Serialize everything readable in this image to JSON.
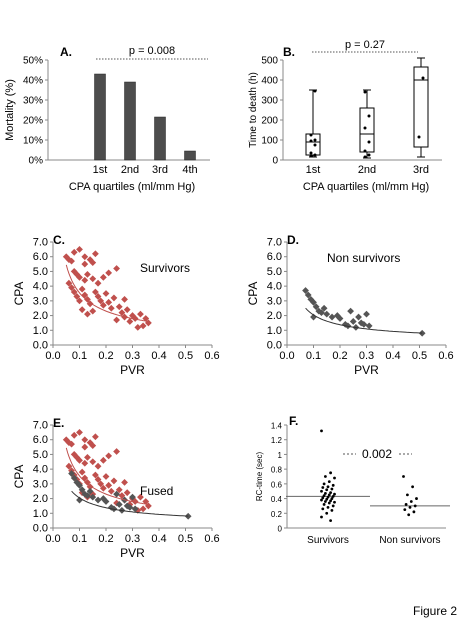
{
  "figure_caption": "Figure 2",
  "colors": {
    "survivor": "#c0504d",
    "nonsurvivor": "#555555",
    "bar": "#4d4d4d",
    "axis": "#888888"
  },
  "chart_data": [
    {
      "id": "A",
      "panel": "A.",
      "type": "bar",
      "categories": [
        "1st",
        "2nd",
        "3rd",
        "4th"
      ],
      "values": [
        43,
        39,
        21.5,
        4.5
      ],
      "xlabel": "CPA quartiles (ml/mm Hg)",
      "ylabel": "Mortality (%)",
      "ylim": [
        0,
        50
      ],
      "yticks": [
        "0%",
        "10%",
        "20%",
        "30%",
        "40%",
        "50%"
      ],
      "annotation": "p = 0.008"
    },
    {
      "id": "B",
      "panel": "B.",
      "type": "box",
      "categories": [
        "1st",
        "2nd",
        "3rd"
      ],
      "boxes": [
        {
          "min": 15,
          "q1": 25,
          "median": 90,
          "q3": 130,
          "max": 350,
          "points": [
            20,
            25,
            35,
            75,
            95,
            100,
            125,
            345
          ]
        },
        {
          "min": 10,
          "q1": 40,
          "median": 130,
          "q3": 260,
          "max": 350,
          "points": [
            15,
            25,
            45,
            90,
            160,
            220,
            340
          ]
        },
        {
          "min": 15,
          "q1": 65,
          "median": 400,
          "q3": 465,
          "max": 510,
          "points": [
            115,
            410
          ]
        }
      ],
      "xlabel": "CPA quartiles (ml/mm Hg)",
      "ylabel": "Time to death (h)",
      "ylim": [
        0,
        500
      ],
      "yticks": [
        "0",
        "100",
        "200",
        "300",
        "400",
        "500"
      ],
      "annotation": "p = 0.27"
    },
    {
      "id": "C",
      "panel": "C.",
      "type": "scatter",
      "series": [
        {
          "name": "Survivors",
          "color": "#c0504d",
          "points": [
            [
              0.05,
              6.0
            ],
            [
              0.06,
              5.8
            ],
            [
              0.07,
              5.7
            ],
            [
              0.08,
              6.3
            ],
            [
              0.1,
              6.5
            ],
            [
              0.12,
              6.0
            ],
            [
              0.12,
              5.5
            ],
            [
              0.14,
              5.8
            ],
            [
              0.15,
              5.6
            ],
            [
              0.16,
              6.2
            ],
            [
              0.08,
              5.0
            ],
            [
              0.09,
              4.8
            ],
            [
              0.1,
              4.6
            ],
            [
              0.12,
              4.4
            ],
            [
              0.13,
              4.8
            ],
            [
              0.15,
              4.5
            ],
            [
              0.17,
              4.2
            ],
            [
              0.19,
              4.6
            ],
            [
              0.21,
              4.9
            ],
            [
              0.24,
              5.2
            ],
            [
              0.06,
              4.2
            ],
            [
              0.07,
              3.9
            ],
            [
              0.08,
              3.6
            ],
            [
              0.09,
              3.3
            ],
            [
              0.1,
              3.0
            ],
            [
              0.11,
              3.8
            ],
            [
              0.12,
              3.4
            ],
            [
              0.13,
              3.1
            ],
            [
              0.14,
              2.8
            ],
            [
              0.16,
              3.6
            ],
            [
              0.17,
              3.3
            ],
            [
              0.18,
              3.0
            ],
            [
              0.19,
              2.7
            ],
            [
              0.2,
              3.5
            ],
            [
              0.21,
              2.9
            ],
            [
              0.22,
              2.5
            ],
            [
              0.23,
              3.2
            ],
            [
              0.25,
              2.6
            ],
            [
              0.26,
              2.2
            ],
            [
              0.27,
              3.1
            ],
            [
              0.28,
              2.4
            ],
            [
              0.3,
              2.0
            ],
            [
              0.29,
              1.6
            ],
            [
              0.31,
              1.8
            ],
            [
              0.33,
              2.1
            ],
            [
              0.35,
              1.8
            ],
            [
              0.36,
              1.5
            ],
            [
              0.34,
              1.3
            ],
            [
              0.32,
              1.2
            ],
            [
              0.11,
              2.4
            ],
            [
              0.13,
              2.1
            ],
            [
              0.15,
              2.3
            ],
            [
              0.24,
              1.7
            ],
            [
              0.27,
              1.9
            ]
          ]
        }
      ],
      "trend_label": "Survivors",
      "xlabel": "PVR",
      "ylabel": "CPA",
      "xlim": [
        0,
        0.6
      ],
      "ylim": [
        0,
        7
      ],
      "xticks": [
        "0.0",
        "0.1",
        "0.2",
        "0.3",
        "0.4",
        "0.5",
        "0.6"
      ],
      "yticks": [
        "0.0",
        "1.0",
        "2.0",
        "3.0",
        "4.0",
        "5.0",
        "6.0",
        "7.0"
      ]
    },
    {
      "id": "D",
      "panel": "D.",
      "type": "scatter",
      "series": [
        {
          "name": "Non survivors",
          "color": "#555555",
          "points": [
            [
              0.07,
              3.7
            ],
            [
              0.08,
              3.4
            ],
            [
              0.09,
              3.1
            ],
            [
              0.1,
              2.9
            ],
            [
              0.11,
              2.6
            ],
            [
              0.12,
              2.3
            ],
            [
              0.13,
              2.2
            ],
            [
              0.14,
              2.5
            ],
            [
              0.15,
              2.1
            ],
            [
              0.17,
              1.9
            ],
            [
              0.19,
              2.0
            ],
            [
              0.2,
              1.8
            ],
            [
              0.22,
              1.4
            ],
            [
              0.23,
              1.3
            ],
            [
              0.24,
              2.3
            ],
            [
              0.25,
              1.6
            ],
            [
              0.26,
              1.2
            ],
            [
              0.27,
              1.9
            ],
            [
              0.28,
              1.5
            ],
            [
              0.29,
              1.4
            ],
            [
              0.3,
              2.1
            ],
            [
              0.31,
              1.3
            ],
            [
              0.1,
              1.9
            ],
            [
              0.51,
              0.8
            ]
          ]
        }
      ],
      "trend_label": "Non survivors",
      "xlabel": "PVR",
      "ylabel": "CPA",
      "xlim": [
        0,
        0.6
      ],
      "ylim": [
        0,
        7
      ],
      "xticks": [
        "0.0",
        "0.1",
        "0.2",
        "0.3",
        "0.4",
        "0.5",
        "0.6"
      ],
      "yticks": [
        "0.0",
        "1.0",
        "2.0",
        "3.0",
        "4.0",
        "5.0",
        "6.0",
        "7.0"
      ]
    },
    {
      "id": "E",
      "panel": "E.",
      "type": "scatter",
      "series": [
        {
          "name": "Survivors",
          "color": "#c0504d",
          "from_panel": "C"
        },
        {
          "name": "Non survivors",
          "color": "#555555",
          "from_panel": "D"
        }
      ],
      "trend_label": "Fused",
      "xlabel": "PVR",
      "ylabel": "CPA",
      "xlim": [
        0,
        0.6
      ],
      "ylim": [
        0,
        7
      ],
      "xticks": [
        "0.0",
        "0.1",
        "0.2",
        "0.3",
        "0.4",
        "0.5",
        "0.6"
      ],
      "yticks": [
        "0.0",
        "1.0",
        "2.0",
        "3.0",
        "4.0",
        "5.0",
        "6.0",
        "7.0"
      ]
    },
    {
      "id": "F",
      "panel": "F.",
      "type": "dot",
      "categories": [
        "Survivors",
        "Non survivors"
      ],
      "means": [
        0.43,
        0.3
      ],
      "groups": [
        [
          1.32,
          0.75,
          0.7,
          0.68,
          0.63,
          0.6,
          0.58,
          0.56,
          0.55,
          0.53,
          0.52,
          0.5,
          0.48,
          0.47,
          0.46,
          0.45,
          0.44,
          0.43,
          0.42,
          0.41,
          0.4,
          0.39,
          0.38,
          0.37,
          0.36,
          0.35,
          0.34,
          0.32,
          0.3,
          0.28,
          0.26,
          0.24,
          0.2,
          0.15,
          0.1
        ],
        [
          0.7,
          0.56,
          0.45,
          0.4,
          0.36,
          0.32,
          0.3,
          0.28,
          0.25,
          0.22,
          0.18
        ]
      ],
      "ylabel": "RC-time (sec)",
      "ylim": [
        0,
        1.4
      ],
      "yticks": [
        "0",
        "0.2",
        "0.4",
        "0.6",
        "0.8",
        "1",
        "1.2",
        "1.4"
      ],
      "annotation": "0.002"
    }
  ]
}
